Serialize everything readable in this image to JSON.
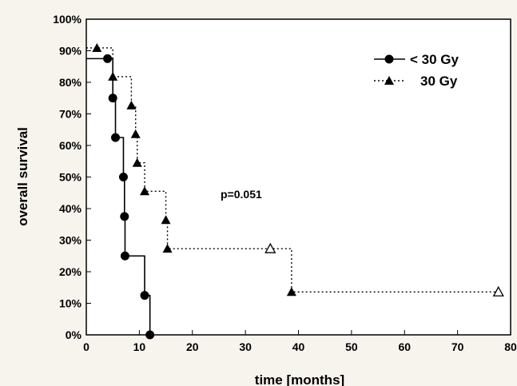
{
  "chart_data": {
    "type": "line",
    "xlabel": "time [months]",
    "ylabel": "overall survival",
    "xlim": [
      0,
      80
    ],
    "ylim": [
      0,
      1
    ],
    "x_ticks": [
      "0",
      "10",
      "20",
      "30",
      "40",
      "50",
      "60",
      "70",
      "80"
    ],
    "y_ticks": [
      "0%",
      "10%",
      "20%",
      "30%",
      "40%",
      "50%",
      "60%",
      "70%",
      "80%",
      "90%",
      "100%"
    ],
    "annotation": "p=0.051",
    "legend_position": "top-right",
    "series": [
      {
        "name": "< 30 Gy",
        "marker": "filled-circle",
        "line_style": "solid",
        "steps": [
          [
            0,
            0.875
          ],
          [
            4,
            0.875
          ],
          [
            5,
            0.75
          ],
          [
            5.5,
            0.625
          ],
          [
            7,
            0.5
          ],
          [
            7.2,
            0.375
          ],
          [
            7.3,
            0.25
          ],
          [
            11,
            0.125
          ],
          [
            12,
            0.0
          ]
        ],
        "events": [
          [
            4,
            0.875
          ],
          [
            5,
            0.75
          ],
          [
            5.5,
            0.625
          ],
          [
            7,
            0.5
          ],
          [
            7.2,
            0.375
          ],
          [
            7.3,
            0.25
          ],
          [
            11,
            0.125
          ],
          [
            12,
            0.0
          ]
        ],
        "censored": []
      },
      {
        "name": "30 Gy",
        "marker": "filled-triangle",
        "line_style": "dotted",
        "steps": [
          [
            0,
            0.909
          ],
          [
            5,
            0.818
          ],
          [
            8.5,
            0.727
          ],
          [
            9.3,
            0.636
          ],
          [
            9.6,
            0.545
          ],
          [
            11,
            0.455
          ],
          [
            15,
            0.364
          ],
          [
            15.3,
            0.273
          ],
          [
            38.7,
            0.136
          ],
          [
            78,
            0.136
          ]
        ],
        "events": [
          [
            2,
            0.909
          ],
          [
            5,
            0.818
          ],
          [
            8.5,
            0.727
          ],
          [
            9.3,
            0.636
          ],
          [
            9.6,
            0.545
          ],
          [
            11,
            0.455
          ],
          [
            15,
            0.364
          ],
          [
            15.3,
            0.273
          ],
          [
            38.7,
            0.136
          ]
        ],
        "censored": [
          [
            34.7,
            0.273
          ],
          [
            77.7,
            0.136
          ]
        ]
      }
    ]
  }
}
